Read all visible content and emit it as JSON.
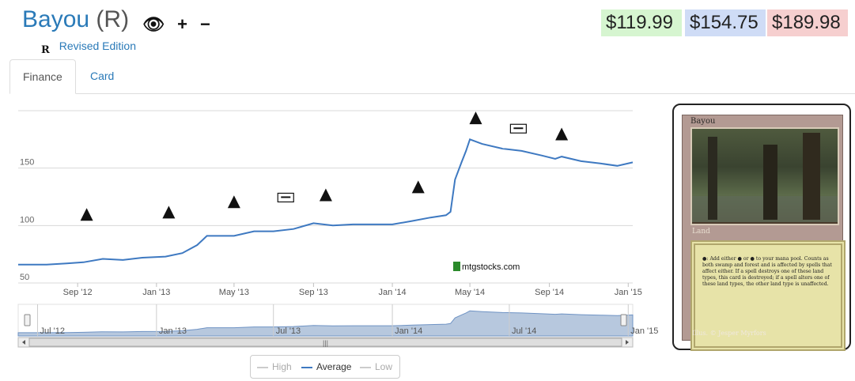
{
  "header": {
    "card_name": "Bayou",
    "rarity": "(R)",
    "icons": [
      "eye-slash-icon",
      "plus-icon",
      "minus-icon"
    ],
    "set_symbol": "R",
    "set_name": "Revised Edition"
  },
  "prices": [
    {
      "label": "$119.99",
      "color": "#d6f5d0"
    },
    {
      "label": "$154.75",
      "color": "#cfdcf6"
    },
    {
      "label": "$189.98",
      "color": "#f6cfcf"
    }
  ],
  "tabs": [
    {
      "label": "Finance",
      "active": true
    },
    {
      "label": "Card",
      "active": false
    }
  ],
  "chart_data": {
    "type": "line",
    "title": "",
    "xlabel": "",
    "ylabel": "",
    "ylim": [
      50,
      200
    ],
    "y_ticks": [
      "50",
      "100",
      "150"
    ],
    "x_ticks": [
      {
        "label": "Sep '12",
        "date": "2012-09-01"
      },
      {
        "label": "Jan '13",
        "date": "2013-01-01"
      },
      {
        "label": "May '13",
        "date": "2013-05-01"
      },
      {
        "label": "Sep '13",
        "date": "2013-09-01"
      },
      {
        "label": "Jan '14",
        "date": "2014-01-01"
      },
      {
        "label": "May '14",
        "date": "2014-05-01"
      },
      {
        "label": "Sep '14",
        "date": "2014-09-01"
      },
      {
        "label": "Jan '15",
        "date": "2015-01-01"
      }
    ],
    "x_range": [
      "2012-06-01",
      "2015-01-08"
    ],
    "grid": true,
    "series": [
      {
        "name": "Average",
        "color": "#3e79c1",
        "points": [
          [
            "2012-06-01",
            66
          ],
          [
            "2012-07-15",
            66
          ],
          [
            "2012-08-15",
            67
          ],
          [
            "2012-09-10",
            68
          ],
          [
            "2012-10-10",
            71
          ],
          [
            "2012-11-10",
            70
          ],
          [
            "2012-12-10",
            72
          ],
          [
            "2013-01-15",
            73
          ],
          [
            "2013-02-10",
            76
          ],
          [
            "2013-03-05",
            83
          ],
          [
            "2013-03-20",
            91
          ],
          [
            "2013-05-01",
            91
          ],
          [
            "2013-06-01",
            95
          ],
          [
            "2013-07-01",
            95
          ],
          [
            "2013-08-01",
            97
          ],
          [
            "2013-09-01",
            102
          ],
          [
            "2013-10-01",
            100
          ],
          [
            "2013-11-01",
            101
          ],
          [
            "2013-12-01",
            101
          ],
          [
            "2014-01-01",
            101
          ],
          [
            "2014-02-01",
            104
          ],
          [
            "2014-03-01",
            107
          ],
          [
            "2014-03-25",
            109
          ],
          [
            "2014-04-01",
            112
          ],
          [
            "2014-04-08",
            140
          ],
          [
            "2014-04-18",
            155
          ],
          [
            "2014-04-25",
            165
          ],
          [
            "2014-05-01",
            175
          ],
          [
            "2014-05-20",
            171
          ],
          [
            "2014-06-20",
            167
          ],
          [
            "2014-07-20",
            165
          ],
          [
            "2014-08-20",
            161
          ],
          [
            "2014-09-10",
            158
          ],
          [
            "2014-09-20",
            160
          ],
          [
            "2014-10-20",
            156
          ],
          [
            "2014-11-20",
            154
          ],
          [
            "2014-12-15",
            152
          ],
          [
            "2015-01-08",
            155
          ]
        ]
      }
    ],
    "set_markers": [
      {
        "date": "2012-09-15",
        "value": 109,
        "icon": "set-symbol-icon"
      },
      {
        "date": "2013-01-20",
        "value": 111,
        "icon": "set-symbol-icon"
      },
      {
        "date": "2013-05-01",
        "value": 120,
        "icon": "set-symbol-icon"
      },
      {
        "date": "2013-07-20",
        "value": 124,
        "icon": "m14-set-icon"
      },
      {
        "date": "2013-09-20",
        "value": 126,
        "icon": "set-symbol-icon"
      },
      {
        "date": "2014-02-10",
        "value": 133,
        "icon": "set-symbol-icon"
      },
      {
        "date": "2014-05-10",
        "value": 193,
        "icon": "set-symbol-icon"
      },
      {
        "date": "2014-07-15",
        "value": 184,
        "icon": "m15-set-icon"
      },
      {
        "date": "2014-09-20",
        "value": 179,
        "icon": "set-symbol-icon"
      }
    ],
    "navigator": {
      "x_ticks": [
        "Jul '12",
        "Jan '13",
        "Jul '13",
        "Jan '14",
        "Jul '14",
        "Jan '15"
      ]
    },
    "legend": {
      "placement": "bottom-center",
      "items": [
        {
          "label": "High",
          "color": "#cccccc",
          "visible": false
        },
        {
          "label": "Average",
          "color": "#3e79c1",
          "visible": true
        },
        {
          "label": "Low",
          "color": "#cccccc",
          "visible": false
        }
      ]
    }
  },
  "watermark": "mtgstocks.com",
  "card_image": {
    "title": "Bayou",
    "type_line": "Land",
    "rules_text": "●: Add either ● or ● to your mana pool. Counts as both swamp and forest and is affected by spells that affect either. If a spell destroys one of these land types, this card is destroyed; if a spell alters one of these land types, the other land type is unaffected.",
    "illustrator": "Illus. © Jesper Myrfors"
  }
}
